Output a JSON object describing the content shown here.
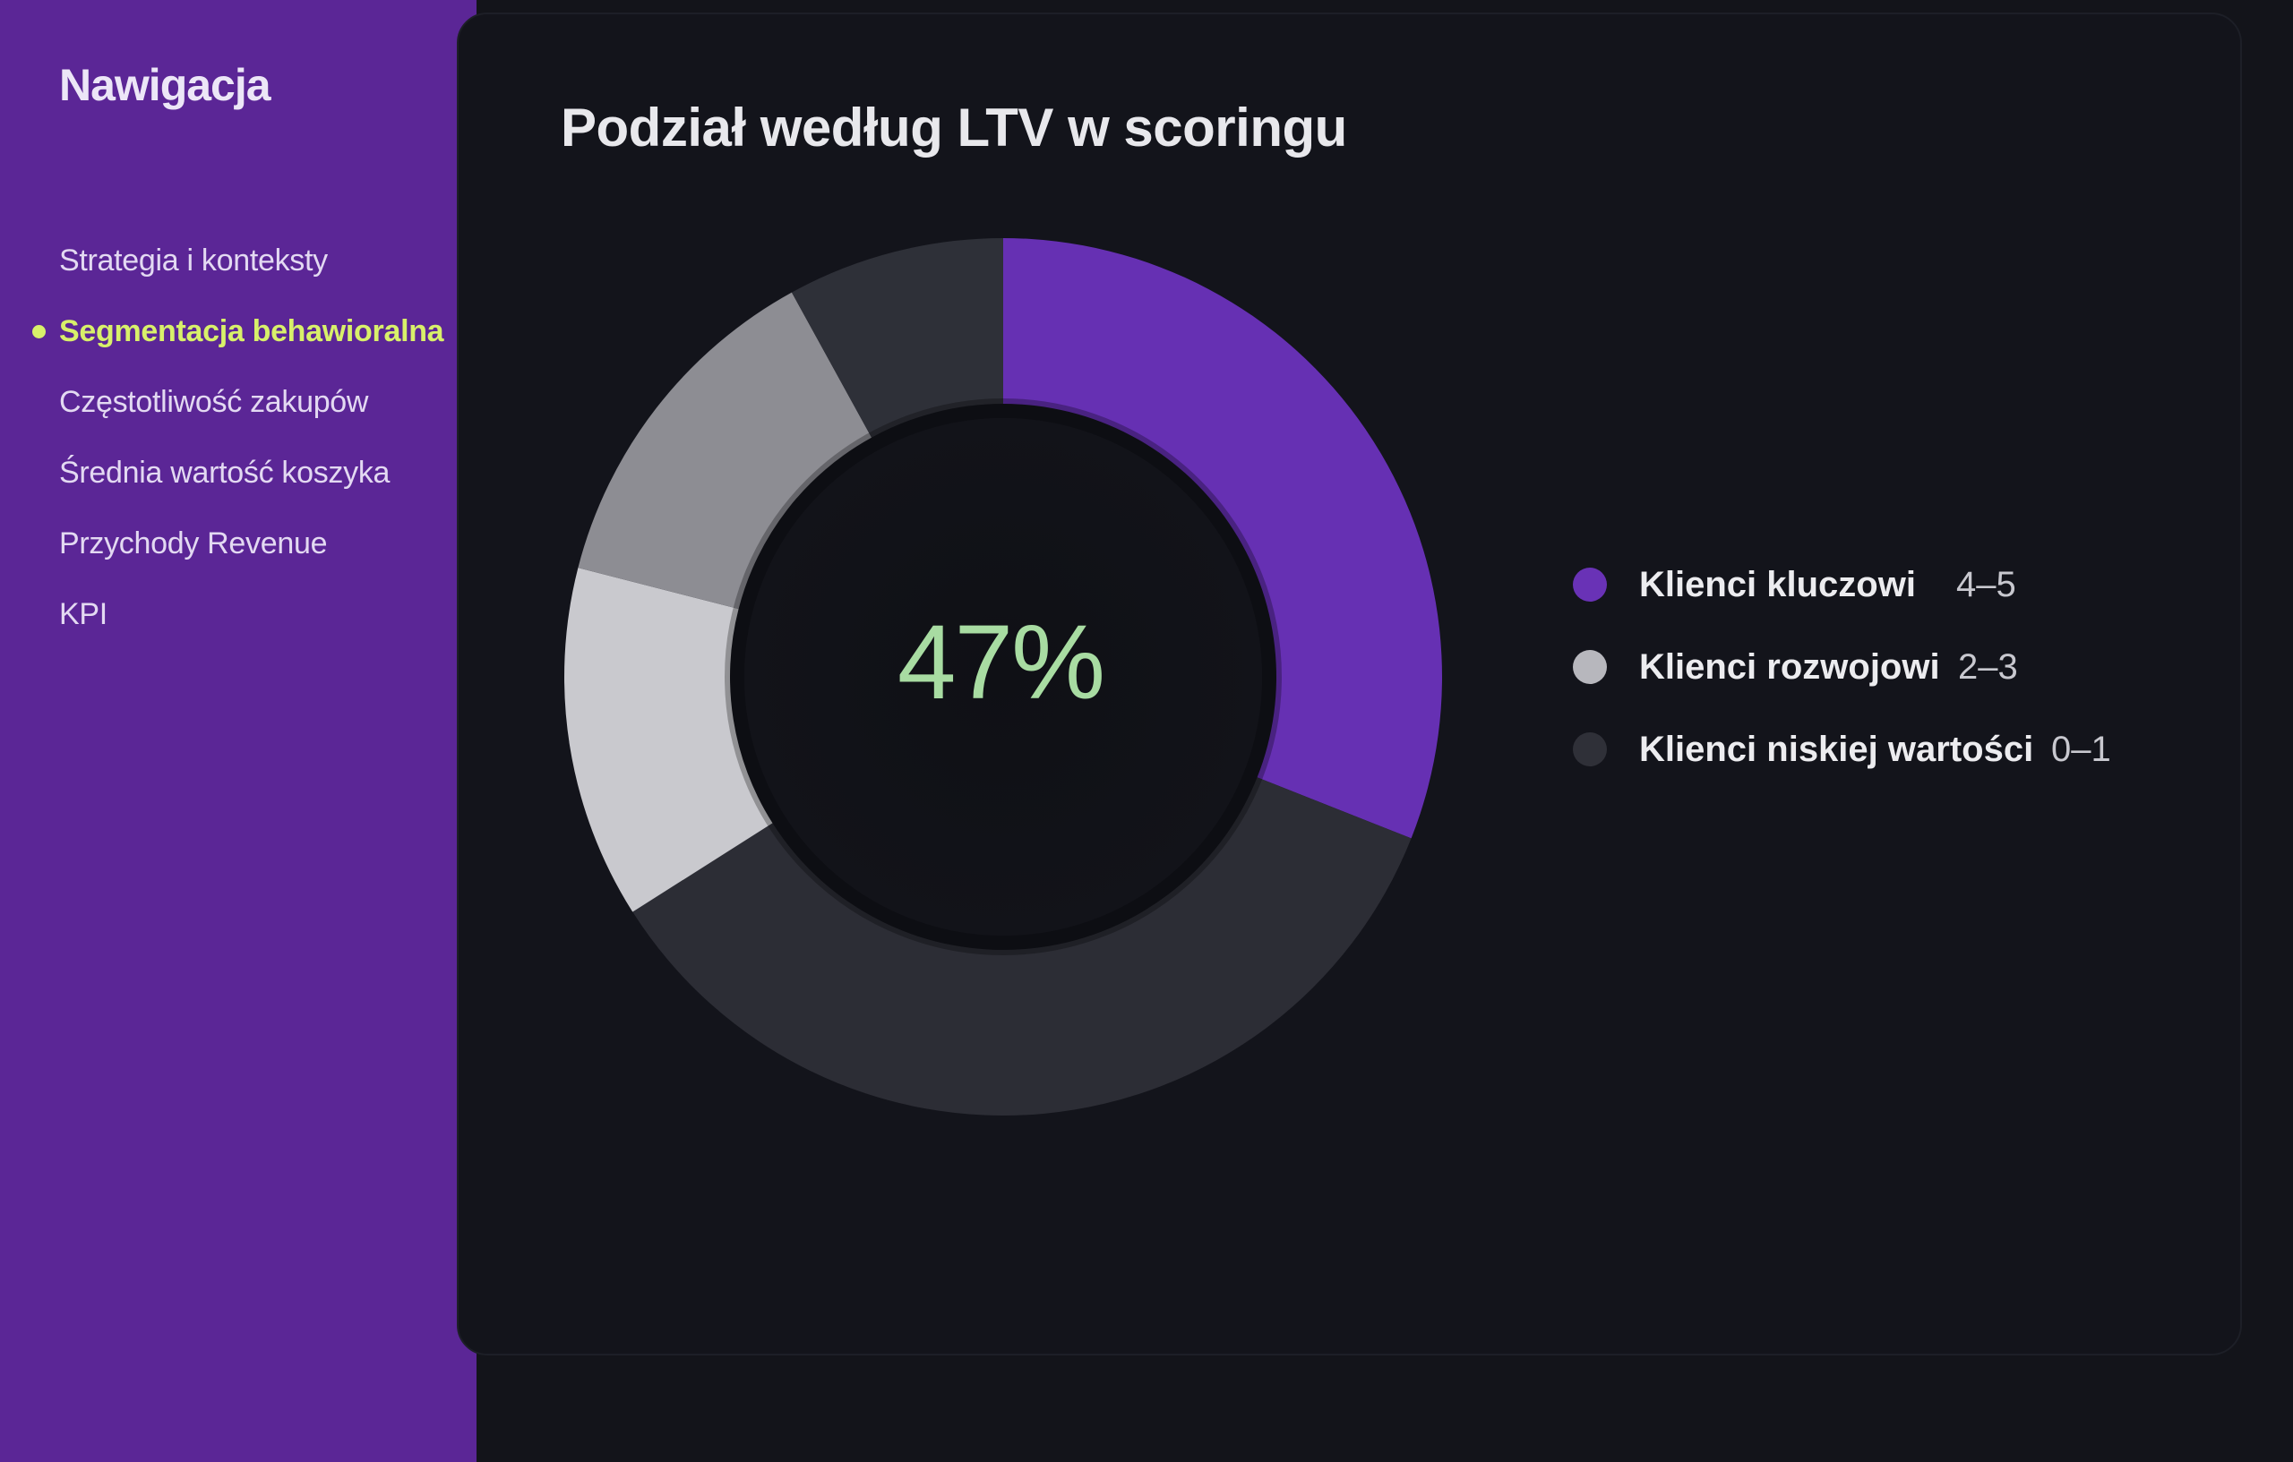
{
  "sidebar": {
    "title": "Nawigacja",
    "items": [
      {
        "label": "Strategia i konteksty",
        "active": false
      },
      {
        "label": "Segmentacja behawioralna",
        "active": true
      },
      {
        "label": "Częstotliwość zakupów",
        "active": false
      },
      {
        "label": "Średnia wartość koszyka",
        "active": false
      },
      {
        "label": "Przychody Revenue",
        "active": false
      },
      {
        "label": "KPI",
        "active": false
      }
    ],
    "colors": {
      "background": "#5b2696",
      "active": "#d8f06a"
    }
  },
  "main": {
    "title": "Podział według LTV w scoringu"
  },
  "chart_data": {
    "type": "pie",
    "center_label": "47%",
    "slices": [
      {
        "name": "Klienci kluczowi",
        "range": "4–5",
        "percent": 31,
        "color": "#6630b3"
      },
      {
        "name": "Klienci niskiej wartości",
        "range": "0–1",
        "percent": 35,
        "color": "#2c2d35"
      },
      {
        "name": "Klienci rozwojowi",
        "range": "2–3",
        "percent": 13,
        "color": "#c9c9ce"
      },
      {
        "name": "Klienci rozwojowi",
        "range": "2–3",
        "percent": 13,
        "color": "#8d8d93"
      },
      {
        "name": "Klienci niskiej wartości",
        "range": "0–1",
        "percent": 8,
        "color": "#2e3038"
      }
    ],
    "legend": [
      {
        "label": "Klienci kluczowi",
        "range": "4–5",
        "color": "#6932b6"
      },
      {
        "label": "Klienci rozwojowi",
        "range": "2–3",
        "color": "#b7b7bd"
      },
      {
        "label": "Klienci niskiej wartości",
        "range": "0–1",
        "color": "#2f3038"
      }
    ],
    "legend_position": "right"
  }
}
